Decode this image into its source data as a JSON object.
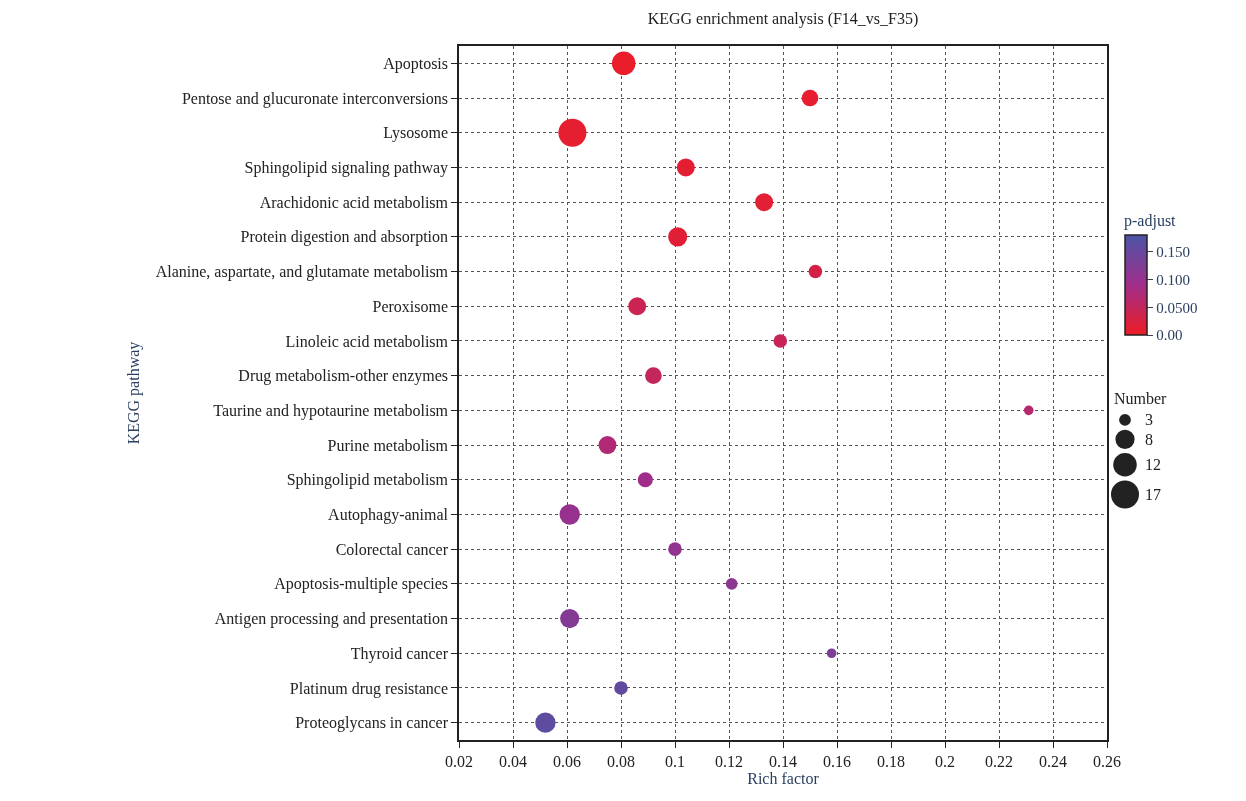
{
  "chart_data": {
    "type": "bubble",
    "title": "KEGG enrichment analysis (F14_vs_F35)",
    "xlabel": "Rich factor",
    "ylabel": "KEGG pathway",
    "clabel": "p-adjust",
    "legend_title": "Number",
    "categories": [
      "Apoptosis",
      "Pentose and glucuronate interconversions",
      "Lysosome",
      "Sphingolipid signaling pathway",
      "Arachidonic acid metabolism",
      "Protein digestion and absorption",
      "Alanine, aspartate, and glutamate metabolism",
      "Peroxisome",
      "Linoleic acid metabolism",
      "Drug metabolism-other enzymes",
      "Taurine and hypotaurine metabolism",
      "Purine metabolism",
      "Sphingolipid metabolism",
      "Autophagy-animal",
      "Colorectal cancer",
      "Apoptosis-multiple species",
      "Antigen processing and presentation",
      "Thyroid cancer",
      "Platinum drug resistance",
      "Proteoglycans in cancer"
    ],
    "orientation": "horizontal",
    "values": [
      0.081,
      0.15,
      0.062,
      0.104,
      0.133,
      0.101,
      0.152,
      0.086,
      0.139,
      0.092,
      0.231,
      0.075,
      0.089,
      0.061,
      0.1,
      0.121,
      0.061,
      0.158,
      0.08,
      0.052
    ],
    "sizes": [
      12,
      6,
      17,
      7,
      7,
      8,
      4,
      7,
      4,
      6,
      2,
      7,
      5,
      9,
      4,
      3,
      8,
      2,
      4,
      9
    ],
    "cvalues": [
      0.005,
      0.008,
      0.01,
      0.012,
      0.014,
      0.016,
      0.03,
      0.04,
      0.045,
      0.05,
      0.065,
      0.07,
      0.09,
      0.1,
      0.105,
      0.11,
      0.12,
      0.13,
      0.155,
      0.16
    ],
    "size_legend": [
      3,
      8,
      12,
      17
    ],
    "xlim": [
      0.02,
      0.26
    ],
    "xticks": [
      0.02,
      0.04,
      0.06,
      0.08,
      0.1,
      0.12,
      0.14,
      0.16,
      0.18,
      0.2,
      0.22,
      0.24,
      0.26
    ],
    "clim": [
      0,
      0.18
    ],
    "cticks": [
      {
        "value": 0,
        "label": "0.00"
      },
      {
        "value": 0.05,
        "label": "0.0500"
      },
      {
        "value": 0.1,
        "label": "0.100"
      },
      {
        "value": 0.15,
        "label": "0.150"
      }
    ],
    "grid": true
  }
}
